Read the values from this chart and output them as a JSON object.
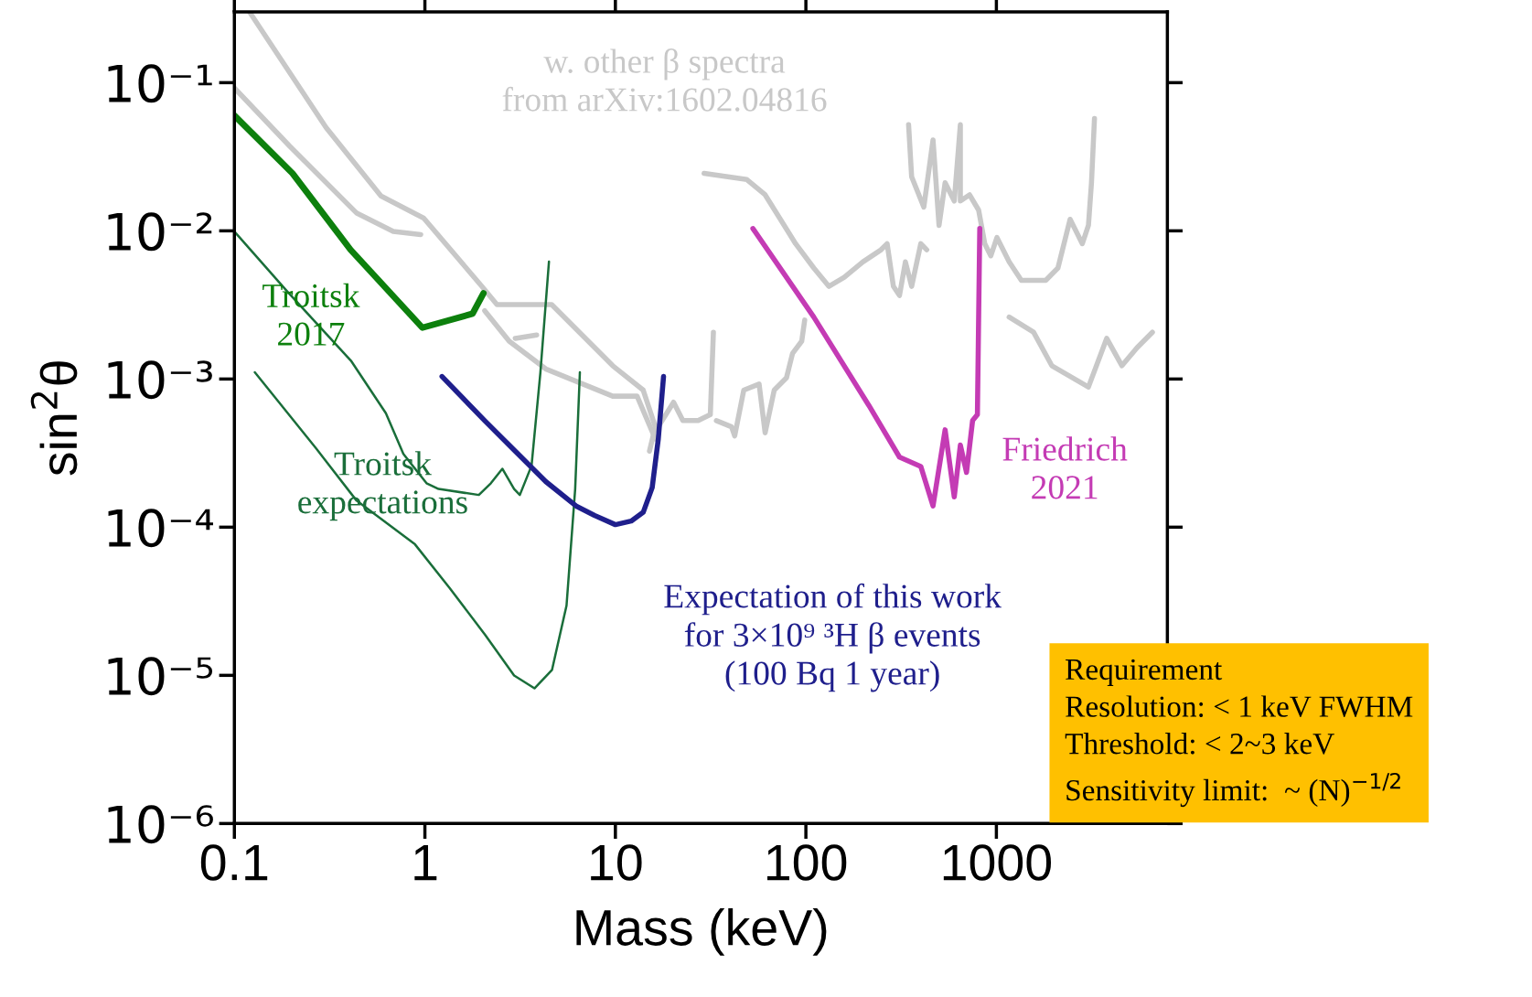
{
  "chart_data": {
    "type": "line",
    "xlabel": "Mass (keV)",
    "ylabel": "sin$^{2}$θ",
    "log": "xy",
    "grid": false,
    "legend": false,
    "marker": "none",
    "line_style": "solid",
    "xlim": [
      0.1,
      7900
    ],
    "ylim": [
      1e-06,
      0.3
    ],
    "xticks": [
      0.1,
      1,
      10,
      100,
      1000
    ],
    "yticks": [
      {
        "value": 1e-06,
        "label": "10⁻⁶"
      },
      {
        "value": 1e-05,
        "label": "10⁻⁵"
      },
      {
        "value": 0.0001,
        "label": "10⁻⁴"
      },
      {
        "value": 0.001,
        "label": "10⁻³"
      },
      {
        "value": 0.01,
        "label": "10⁻²"
      },
      {
        "value": 0.1,
        "label": "10⁻¹"
      }
    ],
    "series": [
      {
        "name": "w. other β spectra\nfrom arXiv:1602.04816",
        "color": "#c8c8c8",
        "x": [
          0.12,
          0.303,
          0.588,
          0.986,
          1.99,
          2.39,
          4.63,
          9.68,
          14.0,
          16.2,
          15.1
        ],
        "values": [
          0.3,
          0.0497,
          0.0172,
          0.01219,
          0.00422,
          0.00318,
          0.00318,
          0.00123,
          0.000841,
          0.000476,
          0.000326
        ]
      },
      {
        "color": "#c8c8c8",
        "x": [
          0.1,
          0.195,
          0.439,
          0.682,
          0.951
        ],
        "values": [
          0.092,
          0.0373,
          0.01315,
          0.0099,
          0.00944
        ]
      },
      {
        "color": "#c8c8c8",
        "x": [
          2.06,
          2.77,
          4.31,
          9.68,
          13.0,
          16.2
        ],
        "values": [
          0.00289,
          0.0018,
          0.00117,
          0.000766,
          0.000766,
          0.000394
        ]
      },
      {
        "color": "#c8c8c8",
        "x": [
          2.98,
          3.86
        ],
        "values": [
          0.00188,
          0.00198
        ]
      },
      {
        "color": "#c8c8c8",
        "x": [
          16.8,
          20.2,
          22.6,
          27.2,
          31.5,
          32.7
        ],
        "values": [
          0.000476,
          0.000697,
          0.000524,
          0.000524,
          0.000575,
          0.00207
        ]
      },
      {
        "color": "#c8c8c8",
        "x": [
          33.9,
          40.7,
          42.3,
          47.2,
          56.8,
          61.1,
          68.2,
          79.1,
          85.1,
          95.1,
          98.6
        ],
        "values": [
          0.000524,
          0.000476,
          0.000413,
          0.000841,
          0.000925,
          0.000433,
          0.000841,
          0.00102,
          0.00149,
          0.0018,
          0.0025
        ]
      },
      {
        "color": "#c8c8c8",
        "x": [
          29.2,
          49.0,
          61.1,
          88.3,
          110,
          132,
          159,
          199,
          248,
          267,
          288,
          310,
          333,
          359,
          401,
          431
        ],
        "values": [
          0.0244,
          0.0222,
          0.0175,
          0.00819,
          0.00561,
          0.00422,
          0.00486,
          0.00617,
          0.00745,
          0.00819,
          0.00422,
          0.00366,
          0.00617,
          0.00422,
          0.00819,
          0.00745
        ]
      },
      {
        "color": "#c8c8c8",
        "x": [
          346,
          359,
          416,
          465,
          500,
          538,
          601,
          647,
          647,
          723,
          807,
          869,
          935,
          1007,
          1167,
          1352,
          1816,
          2104,
          2438,
          2825,
          3042,
          3156,
          3273
        ],
        "values": [
          0.0521,
          0.0232,
          0.01445,
          0.0411,
          0.01088,
          0.0211,
          0.0159,
          0.0521,
          0.0159,
          0.0175,
          0.0138,
          0.00819,
          0.00678,
          0.00901,
          0.00617,
          0.00463,
          0.00463,
          0.00561,
          0.01197,
          0.00819,
          0.01088,
          0.0211,
          0.0573
        ]
      },
      {
        "color": "#c8c8c8",
        "x": [
          1167,
          1567,
          1954,
          3042,
          3793,
          4560,
          5483,
          6592
        ],
        "values": [
          0.00262,
          0.00207,
          0.00123,
          0.000883,
          0.00188,
          0.00123,
          0.00163,
          0.00207
        ]
      },
      {
        "name": "Troitsk\n2017",
        "color": "#0d800d",
        "x": [
          0.1,
          0.202,
          0.407,
          0.97,
          1.78,
          2.03
        ],
        "values": [
          0.06,
          0.0244,
          0.00746,
          0.00222,
          0.00276,
          0.00379
        ]
      },
      {
        "name": "Troitsk\nexpectations",
        "color": "#1a6e3a",
        "x": [
          0.1,
          0.188,
          0.409,
          0.624,
          0.771,
          1.02,
          1.18,
          1.92,
          2.22,
          2.55,
          2.94,
          3.15,
          3.63,
          4.04,
          4.48
        ],
        "values": [
          0.0099,
          0.00394,
          0.00133,
          0.000588,
          0.000312,
          0.000198,
          0.000181,
          0.000165,
          0.000198,
          0.000248,
          0.000181,
          0.000165,
          0.00026,
          0.00111,
          0.00619
        ]
      },
      {
        "color": "#1a6e3a",
        "x": [
          0.128,
          0.268,
          0.438,
          0.887,
          1.35,
          2.07,
          2.94,
          3.76,
          4.65,
          5.54,
          6.15,
          6.51
        ],
        "values": [
          0.00111,
          0.000341,
          0.000151,
          7.66e-05,
          3.88e-05,
          1.88e-05,
          9.98e-06,
          8.17e-06,
          1.09e-05,
          2.96e-05,
          0.000181,
          0.00111
        ]
      },
      {
        "name": "Expectation of this work\nfor 3×10⁹ ³H β events\n(100 Bq 1 year)",
        "color": "#1f1f8c",
        "x": [
          1.23,
          2.06,
          2.98,
          4.31,
          6.22,
          7.77,
          10.0,
          12.1,
          14.0,
          15.6,
          16.8,
          17.9
        ],
        "values": [
          0.00104,
          0.000524,
          0.000326,
          0.000203,
          0.000139,
          0.00012,
          0.000104,
          0.00011,
          0.000126,
          0.000185,
          0.000394,
          0.00104
        ]
      },
      {
        "name": "Friedrich\n2021",
        "color": "#c43bb4",
        "x": [
          52.7,
          110,
          214,
          310,
          401,
          465,
          538,
          601,
          647,
          697,
          750,
          795,
          818
        ],
        "values": [
          0.01037,
          0.00262,
          0.000664,
          0.000297,
          0.000257,
          0.000139,
          0.000454,
          0.00016,
          0.000358,
          0.000234,
          0.000524,
          0.000575,
          0.01037
        ]
      }
    ],
    "annotations": [
      "Requirement\nResolution: < 1 keV FWHM\nThreshold: < 2~3 keV\nSensitivity limit:  ~ (N)$^{−1/2}$"
    ]
  }
}
